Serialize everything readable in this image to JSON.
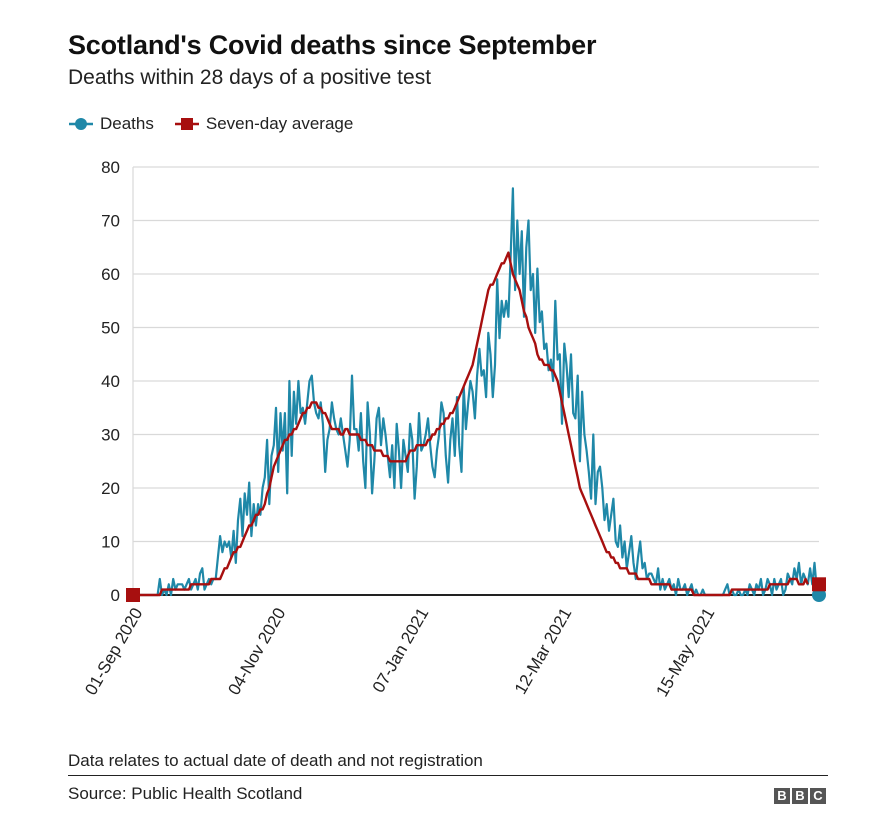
{
  "header": {
    "title": "Scotland's Covid deaths since September",
    "subtitle": "Deaths within 28 days of a positive test"
  },
  "legend": {
    "items": [
      {
        "label": "Deaths",
        "color": "#1f88a8",
        "marker": "circle"
      },
      {
        "label": "Seven-day average",
        "color": "#a70f0f",
        "marker": "square"
      }
    ]
  },
  "footer": {
    "note": "Data relates to actual date of death and not registration",
    "source": "Source: Public Health Scotland",
    "logo_letters": [
      "B",
      "B",
      "C"
    ]
  },
  "chart_data": {
    "type": "line",
    "title": "Scotland's Covid deaths since September",
    "subtitle": "Deaths within 28 days of a positive test",
    "xlabel": "",
    "ylabel": "",
    "ylim": [
      0,
      80
    ],
    "yticks": [
      0,
      10,
      20,
      30,
      40,
      50,
      60,
      70,
      80
    ],
    "x_start": "2020-09-01",
    "x_end": "2021-06-26",
    "xtick_labels": [
      "01-Sep 2020",
      "04-Nov 2020",
      "07-Jan 2021",
      "12-Mar 2021",
      "15-May 2021"
    ],
    "xtick_day_offsets": [
      0,
      64,
      128,
      192,
      256
    ],
    "grid": true,
    "legend_position": "top-left",
    "series": [
      {
        "name": "Deaths",
        "color": "#1f88a8",
        "values": [
          0,
          0,
          0,
          0,
          0,
          0,
          0,
          0,
          0,
          0,
          0,
          0,
          3,
          0,
          1,
          0,
          2,
          0,
          3,
          1,
          2,
          2,
          2,
          1,
          2,
          3,
          1,
          2,
          3,
          1,
          4,
          5,
          1,
          2,
          3,
          2,
          3,
          3,
          7,
          11,
          8,
          10,
          9,
          10,
          7,
          12,
          6,
          14,
          18,
          11,
          19,
          15,
          21,
          11,
          17,
          13,
          17,
          15,
          20,
          22,
          29,
          17,
          26,
          28,
          35,
          23,
          34,
          27,
          34,
          19,
          40,
          26,
          38,
          32,
          40,
          34,
          35,
          32,
          36,
          40,
          41,
          36,
          34,
          33,
          36,
          32,
          23,
          29,
          31,
          36,
          33,
          31,
          30,
          33,
          30,
          27,
          24,
          29,
          41,
          31,
          31,
          27,
          34,
          25,
          20,
          36,
          30,
          19,
          25,
          33,
          35,
          28,
          33,
          30,
          26,
          22,
          28,
          20,
          32,
          27,
          20,
          29,
          26,
          23,
          32,
          29,
          18,
          24,
          34,
          27,
          28,
          30,
          33,
          28,
          24,
          22,
          27,
          30,
          36,
          34,
          26,
          21,
          29,
          33,
          26,
          37,
          28,
          23,
          39,
          31,
          36,
          40,
          38,
          33,
          41,
          46,
          41,
          42,
          37,
          49,
          45,
          37,
          43,
          59,
          48,
          55,
          52,
          55,
          52,
          63,
          76,
          57,
          70,
          60,
          68,
          52,
          65,
          70,
          57,
          60,
          49,
          61,
          51,
          53,
          46,
          47,
          42,
          44,
          40,
          55,
          44,
          45,
          32,
          47,
          43,
          37,
          45,
          34,
          33,
          41,
          25,
          38,
          30,
          27,
          23,
          18,
          30,
          17,
          23,
          24,
          20,
          14,
          17,
          12,
          15,
          18,
          10,
          9,
          13,
          7,
          10,
          5,
          8,
          11,
          6,
          3,
          7,
          10,
          5,
          6,
          3,
          4,
          4,
          3,
          2,
          5,
          1,
          3,
          1,
          2,
          3,
          1,
          2,
          0,
          3,
          1,
          1,
          2,
          0,
          1,
          2,
          0,
          1,
          0,
          0,
          1,
          0,
          0,
          0,
          0,
          0,
          0,
          0,
          0,
          0,
          1,
          2,
          0,
          1,
          0,
          0,
          1,
          0,
          0,
          1,
          0,
          2,
          1,
          0,
          2,
          1,
          3,
          0,
          1,
          3,
          2,
          0,
          3,
          1,
          2,
          3,
          0,
          1,
          4,
          3,
          2,
          5,
          3,
          6,
          2,
          4,
          3,
          2,
          5,
          2,
          6,
          1,
          0
        ]
      },
      {
        "name": "Seven-day average",
        "color": "#a70f0f",
        "values": [
          0,
          0,
          0,
          0,
          0,
          0,
          0,
          0,
          0,
          0,
          0,
          0,
          0,
          1,
          1,
          1,
          1,
          1,
          1,
          1,
          1,
          1,
          1,
          1,
          1,
          1,
          2,
          2,
          2,
          2,
          2,
          2,
          2,
          2,
          2,
          3,
          3,
          3,
          3,
          3,
          4,
          5,
          5,
          6,
          7,
          8,
          8,
          9,
          9,
          10,
          11,
          12,
          13,
          13,
          14,
          15,
          15,
          16,
          16,
          17,
          19,
          20,
          22,
          24,
          25,
          26,
          27,
          28,
          29,
          29,
          30,
          30,
          31,
          31,
          32,
          33,
          34,
          34,
          35,
          35,
          36,
          36,
          36,
          35,
          35,
          34,
          34,
          33,
          32,
          31,
          31,
          31,
          31,
          30,
          30,
          31,
          31,
          30,
          30,
          30,
          30,
          30,
          29,
          29,
          29,
          28,
          28,
          28,
          27,
          27,
          27,
          27,
          26,
          26,
          26,
          25,
          25,
          25,
          25,
          25,
          25,
          25,
          25,
          26,
          27,
          27,
          27,
          28,
          28,
          28,
          28,
          28,
          29,
          29,
          30,
          30,
          31,
          31,
          32,
          32,
          33,
          33,
          34,
          34,
          35,
          36,
          37,
          38,
          39,
          40,
          41,
          42,
          43,
          45,
          47,
          49,
          51,
          53,
          55,
          57,
          58,
          58,
          59,
          60,
          61,
          62,
          62,
          63,
          64,
          62,
          60,
          59,
          58,
          57,
          55,
          53,
          52,
          50,
          49,
          48,
          47,
          45,
          44,
          44,
          43,
          43,
          43,
          42,
          42,
          41,
          40,
          38,
          36,
          34,
          32,
          30,
          28,
          26,
          24,
          22,
          20,
          19,
          18,
          17,
          16,
          15,
          14,
          13,
          12,
          11,
          10,
          9,
          8,
          8,
          7,
          7,
          6,
          6,
          5,
          5,
          5,
          5,
          4,
          4,
          4,
          4,
          3,
          3,
          3,
          3,
          3,
          3,
          2,
          2,
          2,
          2,
          2,
          2,
          2,
          2,
          2,
          1,
          1,
          1,
          1,
          1,
          1,
          1,
          1,
          1,
          1,
          0,
          0,
          0,
          0,
          0,
          0,
          0,
          0,
          0,
          0,
          0,
          0,
          0,
          0,
          0,
          0,
          0,
          1,
          1,
          1,
          1,
          1,
          1,
          1,
          1,
          1,
          1,
          1,
          1,
          1,
          1,
          1,
          1,
          1,
          2,
          2,
          2,
          2,
          2,
          2,
          2,
          2,
          2,
          3,
          3,
          3,
          3,
          2,
          2,
          2,
          3,
          2
        ]
      }
    ],
    "annotations": []
  }
}
